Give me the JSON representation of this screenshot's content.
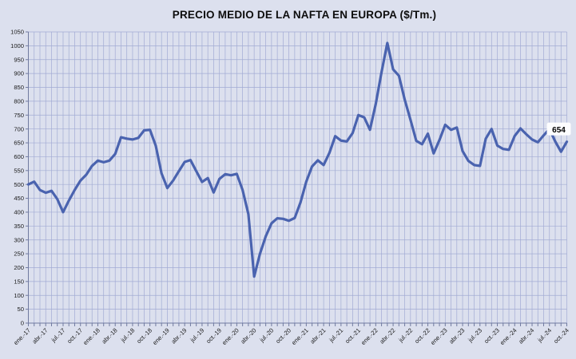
{
  "title": "PRECIO MEDIO DE LA NAFTA EN EUROPA ($/Tm.)",
  "end_label": "654",
  "chart_data": {
    "type": "line",
    "title": "PRECIO MEDIO DE LA NAFTA EN EUROPA ($/Tm.)",
    "xlabel": "",
    "ylabel": "",
    "ylim": [
      0,
      1050
    ],
    "y_tick_step": 50,
    "y_tick_labels": [
      "0",
      "50",
      "100",
      "150",
      "200",
      "250",
      "300",
      "350",
      "400",
      "450",
      "500",
      "550",
      "600",
      "650",
      "700",
      "750",
      "800",
      "850",
      "900",
      "950",
      "1000",
      "1050"
    ],
    "x_tick_labels": [
      "ene.-17",
      "abr.-17",
      "jul.-17",
      "oct.-17",
      "ene.-18",
      "abr.-18",
      "jul.-18",
      "oct.-18",
      "ene.-19",
      "abr.-19",
      "jul.-19",
      "oct.-19",
      "ene.-20",
      "abr.-20",
      "jul.-20",
      "oct.-20",
      "ene.-21",
      "abr.-21",
      "jul.-21",
      "oct.-21",
      "ene.-22",
      "abr.-22",
      "jul.-22",
      "oct.-22",
      "ene.-23",
      "abr.-23",
      "jul.-23",
      "oct.-23",
      "ene.-24",
      "abr.-24",
      "jul.-24",
      "oct.-24"
    ],
    "x_tick_every_n_points": 3,
    "grid": "both",
    "legend": "none",
    "last_point_label": "654",
    "monthly_values": [
      500,
      510,
      480,
      470,
      477,
      447,
      400,
      442,
      480,
      514,
      535,
      567,
      586,
      580,
      586,
      610,
      670,
      665,
      662,
      668,
      695,
      697,
      640,
      540,
      487,
      514,
      548,
      581,
      588,
      548,
      509,
      523,
      471,
      520,
      537,
      533,
      538,
      480,
      393,
      168,
      250,
      313,
      360,
      378,
      376,
      369,
      379,
      435,
      510,
      565,
      587,
      570,
      614,
      674,
      658,
      655,
      685,
      750,
      742,
      697,
      790,
      905,
      1010,
      915,
      892,
      806,
      733,
      657,
      645,
      683,
      612,
      660,
      715,
      697,
      705,
      620,
      585,
      570,
      567,
      665,
      700,
      640,
      628,
      625,
      675,
      702,
      681,
      662,
      652,
      677,
      700,
      655,
      618,
      654
    ],
    "colors": {
      "background": "#dce0ee",
      "gridline": "#a2abd4",
      "axis": "#707aa0",
      "line": "#4a63af",
      "label_text": "#1a1a1a",
      "end_label_bg": "#fdfdfe"
    }
  }
}
